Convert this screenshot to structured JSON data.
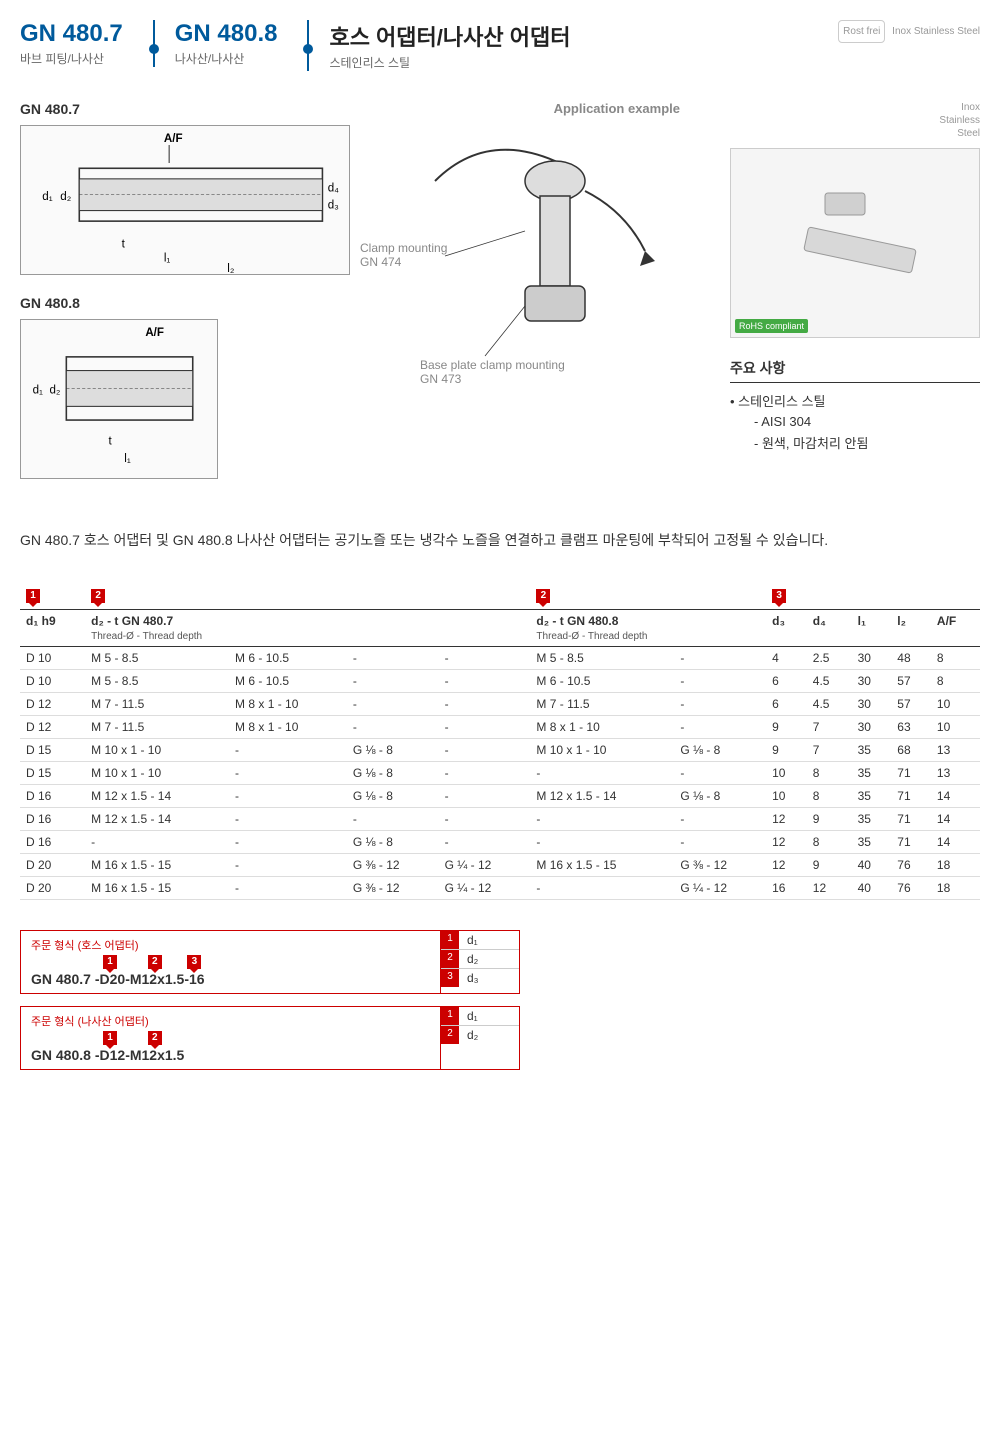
{
  "header": {
    "items": [
      {
        "code": "GN 480.7",
        "sub": "바브 피팅/나사산"
      },
      {
        "code": "GN 480.8",
        "sub": "나사산/나사산"
      }
    ],
    "title": "호스 어댑터/나사산 어댑터",
    "subtitle": "스테인리스 스틸",
    "right_badge": "Rost\nfrei",
    "right_text": "Inox\nStainless\nSteel"
  },
  "diagrams": {
    "d1_label": "GN 480.7",
    "d2_label": "GN 480.8",
    "app_label": "Application example",
    "clamp_label": "Clamp mounting\nGN 474",
    "base_label": "Base plate clamp mounting\nGN 473",
    "dim_labels": [
      "A/F",
      "d₁",
      "d₂",
      "d₃",
      "d₄",
      "t",
      "l₁",
      "l₂"
    ]
  },
  "right_panel": {
    "meta": "Inox\nStainless\nSteel",
    "rohs": "RoHS compliant",
    "spec_title": "주요 사항",
    "specs": [
      {
        "text": "스테인리스 스틸",
        "type": "bullet"
      },
      {
        "text": "AISI 304",
        "type": "sub"
      },
      {
        "text": "원색, 마감처리 안됨",
        "type": "sub"
      }
    ]
  },
  "description": "GN 480.7 호스 어댑터 및 GN 480.8 나사산 어댑터는 공기노즐 또는 냉각수 노즐을 연결하고 클램프 마운팅에 부착되어 고정될 수 있습니다.",
  "table": {
    "markers": [
      "1",
      "2",
      "2",
      "3"
    ],
    "headers": [
      {
        "main": "d₁ h9",
        "sub": ""
      },
      {
        "main": "d₂ - t  GN 480.7",
        "sub": "Thread-Ø - Thread depth",
        "span": 4
      },
      {
        "main": "d₂ - t  GN 480.8",
        "sub": "Thread-Ø - Thread depth",
        "span": 2
      },
      {
        "main": "d₃",
        "sub": ""
      },
      {
        "main": "d₄",
        "sub": ""
      },
      {
        "main": "l₁",
        "sub": ""
      },
      {
        "main": "l₂",
        "sub": ""
      },
      {
        "main": "A/F",
        "sub": ""
      }
    ],
    "rows": [
      [
        "D 10",
        "M 5 - 8.5",
        "M 6 - 10.5",
        "-",
        "-",
        "M 5 - 8.5",
        "-",
        "4",
        "2.5",
        "30",
        "48",
        "8"
      ],
      [
        "D 10",
        "M 5 - 8.5",
        "M 6 - 10.5",
        "-",
        "-",
        "M 6 - 10.5",
        "-",
        "6",
        "4.5",
        "30",
        "57",
        "8"
      ],
      [
        "D 12",
        "M 7 - 11.5",
        "M 8 x 1 - 10",
        "-",
        "-",
        "M 7 - 11.5",
        "-",
        "6",
        "4.5",
        "30",
        "57",
        "10"
      ],
      [
        "D 12",
        "M 7 - 11.5",
        "M 8 x 1 - 10",
        "-",
        "-",
        "M 8 x 1 - 10",
        "-",
        "9",
        "7",
        "30",
        "63",
        "10"
      ],
      [
        "D 15",
        "M 10 x 1 - 10",
        "-",
        "G ⅛ - 8",
        "-",
        "M 10 x 1 - 10",
        "G ⅛ - 8",
        "9",
        "7",
        "35",
        "68",
        "13"
      ],
      [
        "D 15",
        "M 10 x 1 - 10",
        "-",
        "G ⅛ - 8",
        "-",
        "-",
        "-",
        "10",
        "8",
        "35",
        "71",
        "13"
      ],
      [
        "D 16",
        "M 12 x 1.5 - 14",
        "-",
        "G ⅛ - 8",
        "-",
        "M 12 x 1.5 - 14",
        "G ⅛ - 8",
        "10",
        "8",
        "35",
        "71",
        "14"
      ],
      [
        "D 16",
        "M 12 x 1.5 - 14",
        "-",
        "-",
        "-",
        "-",
        "-",
        "12",
        "9",
        "35",
        "71",
        "14"
      ],
      [
        "D 16",
        "-",
        "-",
        "G ⅛ - 8",
        "-",
        "-",
        "-",
        "12",
        "8",
        "35",
        "71",
        "14"
      ],
      [
        "D 20",
        "M 16 x 1.5 - 15",
        "-",
        "G ⅜ - 12",
        "G ¼ - 12",
        "M 16 x 1.5 - 15",
        "G ⅜ - 12",
        "12",
        "9",
        "40",
        "76",
        "18"
      ],
      [
        "D 20",
        "M 16 x 1.5 - 15",
        "-",
        "G ⅜ - 12",
        "G ¼ - 12",
        "-",
        "G ¼ - 12",
        "16",
        "12",
        "40",
        "76",
        "18"
      ]
    ]
  },
  "order": [
    {
      "title": "주문 형식 (호스 어댑터)",
      "prefix": "GN  480.7",
      "segments": [
        {
          "text": "-D20",
          "marker": "1"
        },
        {
          "text": "-M12x1.5",
          "marker": "2"
        },
        {
          "text": "-16",
          "marker": "3"
        }
      ],
      "legend": [
        {
          "idx": "1",
          "lbl": "d₁"
        },
        {
          "idx": "2",
          "lbl": "d₂"
        },
        {
          "idx": "3",
          "lbl": "d₃"
        }
      ]
    },
    {
      "title": "주문 형식 (나사산 어댑터)",
      "prefix": "GN  480.8",
      "segments": [
        {
          "text": "-D12",
          "marker": "1"
        },
        {
          "text": "-M12x1.5",
          "marker": "2"
        }
      ],
      "legend": [
        {
          "idx": "1",
          "lbl": "d₁"
        },
        {
          "idx": "2",
          "lbl": "d₂"
        }
      ]
    }
  ]
}
